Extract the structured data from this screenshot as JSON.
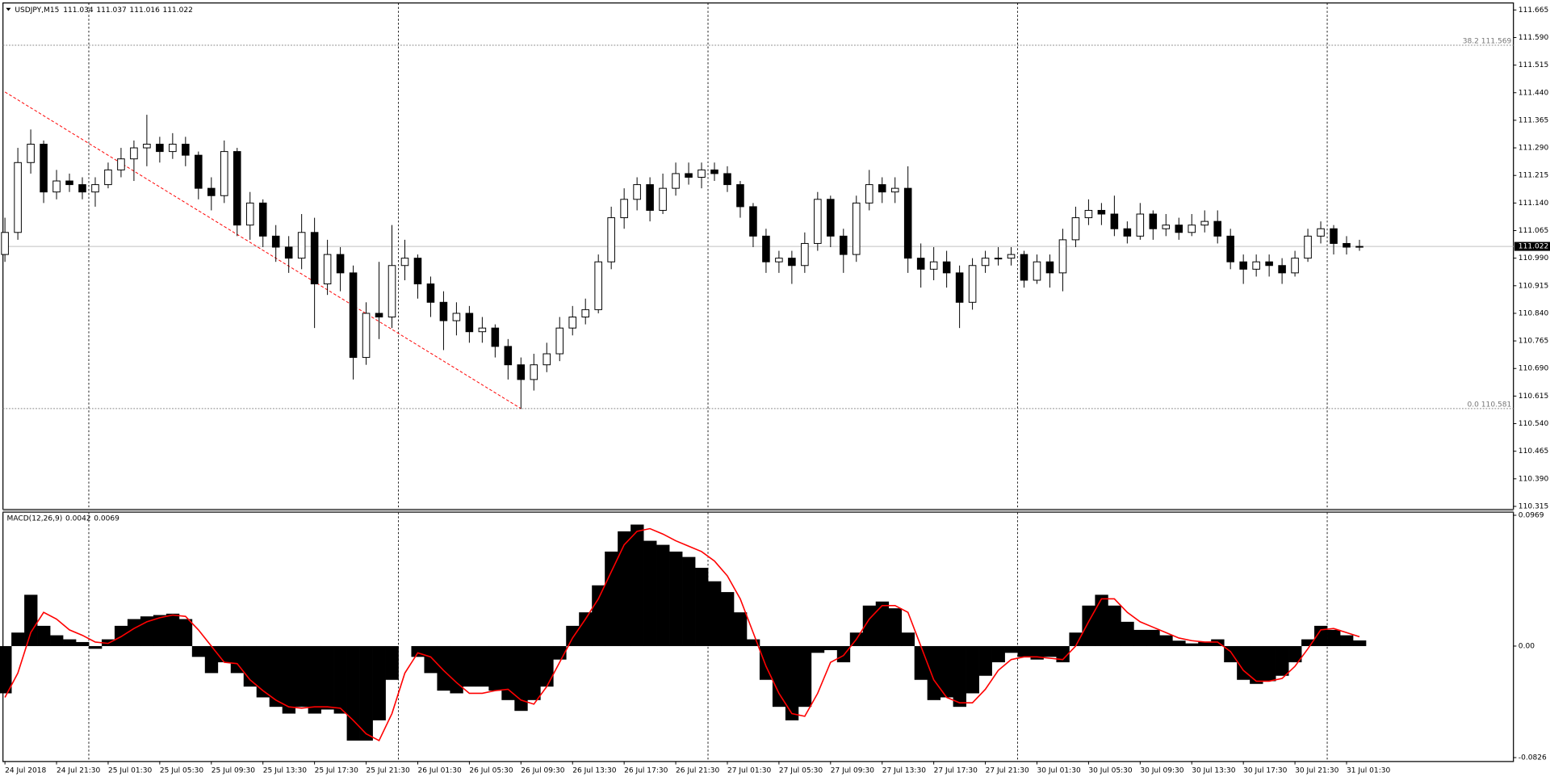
{
  "chart_data": [
    {
      "type": "candlestick",
      "symbol": "USDJPY,M15",
      "header_values": [
        111.034,
        111.037,
        111.016,
        111.022
      ],
      "ylim": [
        110.307,
        111.684
      ],
      "yticks": [
        111.665,
        {
          "value": 111.59,
          "label": "111.590"
        },
        111.515,
        {
          "value": 111.44,
          "label": "111.440"
        },
        111.365,
        {
          "value": 111.29,
          "label": "111.290"
        },
        111.215,
        {
          "value": 111.14,
          "label": "111.140"
        },
        111.065,
        {
          "value": 110.99,
          "label": "110.990"
        },
        110.915,
        {
          "value": 110.84,
          "label": "110.840"
        },
        110.765,
        {
          "value": 110.69,
          "label": "110.690"
        },
        110.615,
        {
          "value": 110.54,
          "label": "110.540"
        },
        110.465,
        {
          "value": 110.39,
          "label": "110.390"
        },
        110.315
      ],
      "last_price": 111.022,
      "fib_levels": [
        {
          "value": 111.569,
          "label": "38.2 111.569"
        },
        {
          "value": 110.581,
          "label": "0.0 110.581"
        }
      ],
      "trendline": {
        "x": [
          0,
          40
        ],
        "y": [
          111.442,
          110.581
        ],
        "color": "#ff0000"
      },
      "x_labels": [
        "24 Jul 2018",
        "24 Jul 21:30",
        "25 Jul 01:30",
        "25 Jul 05:30",
        "25 Jul 09:30",
        "25 Jul 13:30",
        "25 Jul 17:30",
        "25 Jul 21:30",
        "26 Jul 01:30",
        "26 Jul 05:30",
        "26 Jul 09:30",
        "26 Jul 13:30",
        "26 Jul 17:30",
        "26 Jul 21:30",
        "27 Jul 01:30",
        "27 Jul 05:30",
        "27 Jul 09:30",
        "27 Jul 13:30",
        "27 Jul 17:30",
        "27 Jul 21:30",
        "30 Jul 01:30",
        "30 Jul 05:30",
        "30 Jul 09:30",
        "30 Jul 13:30",
        "30 Jul 17:30",
        "30 Jul 21:30",
        "31 Jul 01:30"
      ],
      "bull_color": "#ffffff",
      "bear_color": "#000000",
      "candles": {
        "open": [
          111.0,
          111.06,
          111.25,
          111.3,
          111.17,
          111.2,
          111.19,
          111.17,
          111.19,
          111.23,
          111.26,
          111.29,
          111.3,
          111.28,
          111.3,
          111.27,
          111.18,
          111.16,
          111.28,
          111.08,
          111.14,
          111.05,
          111.02,
          110.99,
          111.06,
          110.92,
          111.0,
          110.95,
          110.72,
          110.84,
          110.83,
          110.97,
          110.99,
          110.92,
          110.87,
          110.82,
          110.84,
          110.79,
          110.8,
          110.75,
          110.7,
          110.66,
          110.7,
          110.73,
          110.8,
          110.83,
          110.85,
          110.98,
          111.1,
          111.15,
          111.19,
          111.12,
          111.18,
          111.22,
          111.21,
          111.23,
          111.22,
          111.19,
          111.13,
          111.05,
          110.98,
          110.99,
          110.97,
          111.03,
          111.15,
          111.05,
          111.0,
          111.14,
          111.19,
          111.17,
          111.18,
          110.99,
          110.96,
          110.98,
          110.95,
          110.87,
          110.97,
          110.99,
          110.99,
          111.0,
          110.93,
          110.98,
          110.95,
          111.04,
          111.1,
          111.12,
          111.11,
          111.07,
          111.05,
          111.11,
          111.07,
          111.08,
          111.06,
          111.08,
          111.09,
          111.05,
          110.98,
          110.96,
          110.98,
          110.97,
          110.95,
          110.99,
          111.05,
          111.07,
          111.03,
          111.02
        ],
        "high": [
          111.1,
          111.29,
          111.34,
          111.31,
          111.23,
          111.22,
          111.21,
          111.21,
          111.25,
          111.29,
          111.31,
          111.38,
          111.32,
          111.33,
          111.32,
          111.28,
          111.21,
          111.31,
          111.29,
          111.17,
          111.15,
          111.08,
          111.05,
          111.11,
          111.1,
          111.04,
          111.02,
          110.97,
          110.87,
          110.98,
          111.08,
          111.04,
          111.0,
          110.94,
          110.9,
          110.87,
          110.86,
          110.83,
          110.81,
          110.77,
          110.72,
          110.73,
          110.76,
          110.83,
          110.86,
          110.88,
          111.0,
          111.13,
          111.18,
          111.21,
          111.21,
          111.22,
          111.25,
          111.25,
          111.25,
          111.25,
          111.24,
          111.2,
          111.14,
          111.07,
          111.01,
          111.01,
          111.06,
          111.17,
          111.16,
          111.07,
          111.16,
          111.23,
          111.21,
          111.21,
          111.24,
          111.03,
          111.02,
          111.01,
          110.97,
          110.99,
          111.01,
          111.02,
          111.02,
          111.01,
          111.0,
          111.0,
          111.07,
          111.13,
          111.15,
          111.14,
          111.16,
          111.09,
          111.14,
          111.12,
          111.11,
          111.1,
          111.11,
          111.12,
          111.12,
          111.07,
          111.0,
          111.0,
          111.0,
          110.99,
          111.01,
          111.07,
          111.09,
          111.08,
          111.05,
          111.04
        ],
        "low": [
          110.98,
          111.04,
          111.22,
          111.14,
          111.15,
          111.17,
          111.15,
          111.13,
          111.18,
          111.21,
          111.2,
          111.24,
          111.25,
          111.26,
          111.24,
          111.15,
          111.12,
          111.14,
          111.05,
          111.04,
          111.02,
          110.98,
          110.95,
          110.96,
          110.8,
          110.89,
          110.9,
          110.66,
          110.7,
          110.77,
          110.8,
          110.93,
          110.88,
          110.83,
          110.74,
          110.78,
          110.76,
          110.76,
          110.72,
          110.66,
          110.58,
          110.63,
          110.68,
          110.71,
          110.78,
          110.81,
          110.84,
          110.96,
          111.07,
          111.12,
          111.09,
          111.11,
          111.16,
          111.19,
          111.18,
          111.2,
          111.17,
          111.1,
          111.02,
          110.95,
          110.95,
          110.92,
          110.95,
          111.01,
          111.02,
          110.95,
          110.98,
          111.12,
          111.14,
          111.14,
          110.95,
          110.91,
          110.93,
          110.91,
          110.8,
          110.85,
          110.95,
          110.97,
          110.97,
          110.91,
          110.92,
          110.91,
          110.9,
          111.02,
          111.08,
          111.08,
          111.05,
          111.03,
          111.04,
          111.04,
          111.05,
          111.04,
          111.05,
          111.06,
          111.03,
          110.96,
          110.92,
          110.94,
          110.94,
          110.92,
          110.94,
          110.98,
          111.03,
          111.0,
          111.0,
          111.01
        ],
        "close": [
          111.06,
          111.25,
          111.3,
          111.17,
          111.2,
          111.19,
          111.17,
          111.19,
          111.23,
          111.26,
          111.29,
          111.3,
          111.28,
          111.3,
          111.27,
          111.18,
          111.16,
          111.28,
          111.08,
          111.14,
          111.05,
          111.02,
          110.99,
          111.06,
          110.92,
          111.0,
          110.95,
          110.72,
          110.84,
          110.83,
          110.97,
          110.99,
          110.92,
          110.87,
          110.82,
          110.84,
          110.79,
          110.8,
          110.75,
          110.7,
          110.66,
          110.7,
          110.73,
          110.8,
          110.83,
          110.85,
          110.98,
          111.1,
          111.15,
          111.19,
          111.12,
          111.18,
          111.22,
          111.21,
          111.23,
          111.22,
          111.19,
          111.13,
          111.05,
          110.98,
          110.99,
          110.97,
          111.03,
          111.15,
          111.05,
          111.0,
          111.14,
          111.19,
          111.17,
          111.18,
          110.99,
          110.96,
          110.98,
          110.95,
          110.87,
          110.97,
          110.99,
          110.99,
          111.0,
          110.93,
          110.98,
          110.95,
          111.04,
          111.1,
          111.12,
          111.11,
          111.07,
          111.05,
          111.11,
          111.07,
          111.08,
          111.06,
          111.08,
          111.09,
          111.05,
          110.98,
          110.96,
          110.98,
          110.97,
          110.95,
          110.99,
          111.05,
          111.07,
          111.03,
          111.02,
          111.022
        ]
      }
    },
    {
      "type": "macd",
      "title": "MACD(12,26,9)",
      "header_values": [
        0.0042,
        0.0069
      ],
      "ylim": [
        -0.0855,
        0.0991
      ],
      "yticks": [
        0.0969,
        {
          "value": 0,
          "label": "0.00"
        },
        -0.0826
      ],
      "histogram": {
        "color": "#000000",
        "values": [
          -0.035,
          0.01,
          0.038,
          0.015,
          0.008,
          0.005,
          0.003,
          -0.002,
          0.005,
          0.015,
          0.02,
          0.022,
          0.023,
          0.024,
          0.02,
          -0.008,
          -0.02,
          -0.012,
          -0.02,
          -0.03,
          -0.038,
          -0.045,
          -0.05,
          -0.045,
          -0.05,
          -0.047,
          -0.05,
          -0.07,
          -0.07,
          -0.055,
          -0.025,
          0,
          -0.008,
          -0.02,
          -0.033,
          -0.035,
          -0.03,
          -0.03,
          -0.033,
          -0.04,
          -0.048,
          -0.04,
          -0.03,
          -0.01,
          0.015,
          0.025,
          0.045,
          0.07,
          0.085,
          0.09,
          0.078,
          0.075,
          0.07,
          0.066,
          0.058,
          0.048,
          0.04,
          0.025,
          0.005,
          -0.025,
          -0.045,
          -0.055,
          -0.045,
          -0.005,
          -0.003,
          -0.012,
          0.01,
          0.03,
          0.033,
          0.028,
          0.01,
          -0.025,
          -0.04,
          -0.038,
          -0.045,
          -0.035,
          -0.022,
          -0.012,
          -0.005,
          -0.008,
          -0.01,
          -0.008,
          -0.012,
          0.01,
          0.03,
          0.038,
          0.03,
          0.018,
          0.012,
          0.012,
          0.008,
          0.004,
          0.002,
          0.003,
          0.005,
          -0.012,
          -0.025,
          -0.028,
          -0.026,
          -0.022,
          -0.012,
          0.005,
          0.015,
          0.012,
          0.008,
          0.0042
        ]
      },
      "signal": {
        "color": "#ff0000",
        "values": [
          -0.038,
          -0.02,
          0.01,
          0.025,
          0.02,
          0.012,
          0.008,
          0.003,
          0.002,
          0.007,
          0.013,
          0.018,
          0.021,
          0.023,
          0.022,
          0.012,
          0,
          -0.012,
          -0.013,
          -0.025,
          -0.033,
          -0.04,
          -0.045,
          -0.046,
          -0.045,
          -0.045,
          -0.046,
          -0.055,
          -0.065,
          -0.07,
          -0.05,
          -0.02,
          -0.005,
          -0.008,
          -0.018,
          -0.027,
          -0.035,
          -0.035,
          -0.033,
          -0.032,
          -0.04,
          -0.043,
          -0.03,
          -0.012,
          0.006,
          0.02,
          0.035,
          0.055,
          0.075,
          0.085,
          0.087,
          0.083,
          0.078,
          0.074,
          0.07,
          0.063,
          0.052,
          0.035,
          0.01,
          -0.015,
          -0.035,
          -0.05,
          -0.052,
          -0.035,
          -0.012,
          -0.007,
          0.005,
          0.02,
          0.03,
          0.03,
          0.025,
          0,
          -0.025,
          -0.038,
          -0.042,
          -0.042,
          -0.032,
          -0.018,
          -0.01,
          -0.008,
          -0.008,
          -0.009,
          -0.01,
          0,
          0.018,
          0.035,
          0.035,
          0.025,
          0.018,
          0.014,
          0.01,
          0.006,
          0.004,
          0.003,
          0.003,
          -0.004,
          -0.018,
          -0.026,
          -0.026,
          -0.024,
          -0.015,
          -0.002,
          0.012,
          0.013,
          0.01,
          0.0069
        ]
      }
    }
  ]
}
